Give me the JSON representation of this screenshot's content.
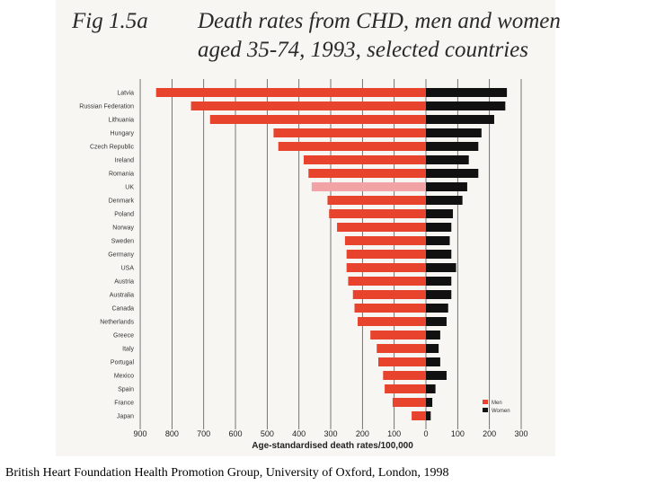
{
  "slide": {
    "fig_label": "Fig 1.5a",
    "title_line1": "Death rates from CHD, men and women",
    "title_line2": "aged 35-74, 1993, selected countries",
    "caption": "British Heart Foundation Health Promotion Group, University of Oxford, London, 1998"
  },
  "chart_data": {
    "type": "bar",
    "orientation": "horizontal-back-to-back",
    "title": "Death rates from CHD, men and women aged 35-74, 1993, selected countries",
    "xlabel": "Age-standardised death rates/100,000",
    "ylabel": "",
    "men_axis": {
      "min": 0,
      "max": 900,
      "direction": "leftward"
    },
    "women_axis": {
      "min": 0,
      "max": 300,
      "direction": "rightward"
    },
    "men_ticks": [
      "900",
      "800",
      "700",
      "600",
      "500",
      "400",
      "300",
      "200",
      "100"
    ],
    "women_ticks": [
      "0",
      "100",
      "200",
      "300"
    ],
    "men_tick_values": [
      900,
      800,
      700,
      600,
      500,
      400,
      300,
      200,
      100
    ],
    "women_tick_values": [
      0,
      100,
      200,
      300
    ],
    "grid": true,
    "legend": {
      "position": "bottom-right",
      "entries": [
        "Men",
        "Women"
      ]
    },
    "colors": {
      "men": "#e8432c",
      "men_highlight": "#f2a3a6",
      "women": "#111111",
      "grid": "#555555"
    },
    "highlight_category": "UK",
    "categories": [
      "Latvia",
      "Russian Federation",
      "Lithuania",
      "Hungary",
      "Czech Republic",
      "Ireland",
      "Romania",
      "UK",
      "Denmark",
      "Poland",
      "Norway",
      "Sweden",
      "Germany",
      "USA",
      "Austria",
      "Australia",
      "Canada",
      "Netherlands",
      "Greece",
      "Italy",
      "Portugal",
      "Mexico",
      "Spain",
      "France",
      "Japan"
    ],
    "series": [
      {
        "name": "Men",
        "values": [
          850,
          740,
          680,
          480,
          465,
          385,
          370,
          360,
          310,
          305,
          280,
          255,
          250,
          250,
          245,
          230,
          225,
          215,
          175,
          155,
          150,
          135,
          130,
          105,
          45
        ]
      },
      {
        "name": "Women",
        "values": [
          255,
          250,
          215,
          175,
          165,
          135,
          165,
          130,
          115,
          85,
          80,
          75,
          80,
          95,
          80,
          80,
          70,
          65,
          45,
          40,
          45,
          65,
          30,
          20,
          15
        ]
      }
    ]
  }
}
